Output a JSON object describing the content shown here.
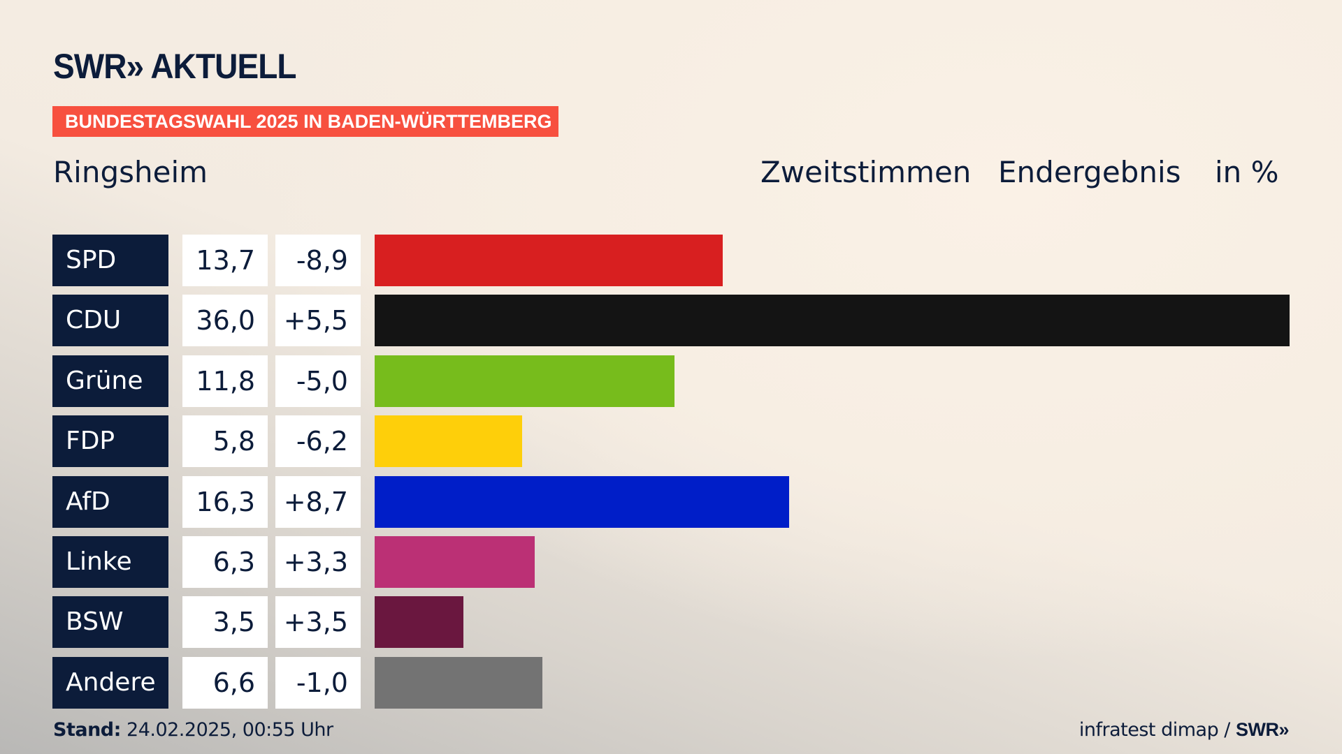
{
  "header": {
    "logo": "SWR» AKTUELL",
    "banner": "BUNDESTAGSWAHL 2025 IN BADEN-WÜRTTEMBERG",
    "place": "Ringsheim",
    "vote_type": "Zweitstimmen",
    "result_type": "Endergebnis",
    "unit": "in %"
  },
  "chart_data": {
    "type": "bar",
    "orientation": "horizontal",
    "title": "Ringsheim – Zweitstimmen Endergebnis in %",
    "categories": [
      "SPD",
      "CDU",
      "Grüne",
      "FDP",
      "AfD",
      "Linke",
      "BSW",
      "Andere"
    ],
    "values": [
      13.7,
      36.0,
      11.8,
      5.8,
      16.3,
      6.3,
      3.5,
      6.6
    ],
    "value_labels": [
      "13,7",
      "36,0",
      "11,8",
      "5,8",
      "16,3",
      "6,3",
      "3,5",
      "6,6"
    ],
    "diff_labels": [
      "-8,9",
      "+5,5",
      "-5,0",
      "-6,2",
      "+8,7",
      "+3,3",
      "+3,5",
      "-1,0"
    ],
    "colors": [
      "#d81f20",
      "#141414",
      "#77bc1c",
      "#fecf0a",
      "#001ec8",
      "#bb3075",
      "#6a173f",
      "#737373"
    ],
    "xlim": [
      0,
      36.0
    ]
  },
  "footer": {
    "stand_label": "Stand:",
    "stand_value": "24.02.2025, 00:55 Uhr",
    "source": "infratest dimap / ",
    "source_logo": "SWR»"
  }
}
